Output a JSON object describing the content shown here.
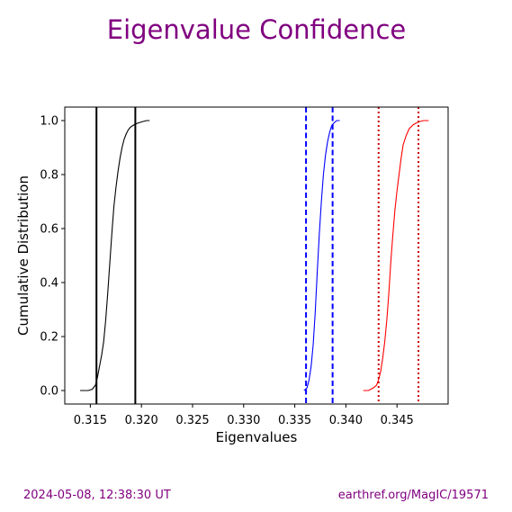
{
  "figure": {
    "title": "Eigenvalue Confidence",
    "title_color": "#800080",
    "footer_left": "2024-05-08, 12:38:30 UT",
    "footer_right": "earthref.org/MagIC/19571",
    "footer_color": "#800080"
  },
  "chart_data": {
    "type": "line",
    "title": "Eigenvalue Confidence",
    "xlabel": "Eigenvalues",
    "ylabel": "Cumulative Distribution",
    "xlim": [
      0.3125,
      0.35
    ],
    "ylim": [
      -0.05,
      1.05
    ],
    "xticks": [
      0.315,
      0.32,
      0.325,
      0.33,
      0.335,
      0.34,
      0.345
    ],
    "xtick_labels": [
      "0.315",
      "0.320",
      "0.325",
      "0.330",
      "0.335",
      "0.340",
      "0.345"
    ],
    "yticks": [
      0.0,
      0.2,
      0.4,
      0.6,
      0.8,
      1.0
    ],
    "ytick_labels": [
      "0.0",
      "0.2",
      "0.4",
      "0.6",
      "0.8",
      "1.0"
    ],
    "grid": false,
    "legend": "none",
    "series": [
      {
        "color": "#000000",
        "x": [
          0.314,
          0.3148,
          0.3152,
          0.3155,
          0.3157,
          0.3159,
          0.3161,
          0.3163,
          0.3165,
          0.3167,
          0.3169,
          0.3171,
          0.3173,
          0.3175,
          0.3177,
          0.3179,
          0.3181,
          0.3183,
          0.3185,
          0.3187,
          0.3189,
          0.3191,
          0.3193,
          0.3196,
          0.32,
          0.3205,
          0.3208
        ],
        "y": [
          0.0,
          0.0,
          0.005,
          0.02,
          0.05,
          0.09,
          0.13,
          0.18,
          0.26,
          0.36,
          0.47,
          0.58,
          0.68,
          0.75,
          0.81,
          0.86,
          0.9,
          0.93,
          0.95,
          0.965,
          0.975,
          0.98,
          0.985,
          0.99,
          0.995,
          1.0,
          1.0
        ]
      },
      {
        "color": "#0000ff",
        "x": [
          0.3359,
          0.3362,
          0.3364,
          0.3366,
          0.3368,
          0.337,
          0.3372,
          0.3374,
          0.3376,
          0.3378,
          0.338,
          0.3382,
          0.3384,
          0.3386,
          0.3388,
          0.3391,
          0.3394
        ],
        "y": [
          0.0,
          0.01,
          0.04,
          0.09,
          0.17,
          0.29,
          0.44,
          0.58,
          0.7,
          0.8,
          0.87,
          0.92,
          0.955,
          0.98,
          0.99,
          1.0,
          1.0
        ]
      },
      {
        "color": "#ff0000",
        "x": [
          0.3417,
          0.3422,
          0.3427,
          0.343,
          0.3432,
          0.3434,
          0.3436,
          0.3438,
          0.344,
          0.3442,
          0.3444,
          0.3446,
          0.3448,
          0.345,
          0.3452,
          0.3454,
          0.3456,
          0.3459,
          0.3462,
          0.3466,
          0.3471,
          0.3476,
          0.3481
        ],
        "y": [
          0.0,
          0.0,
          0.01,
          0.02,
          0.04,
          0.07,
          0.12,
          0.18,
          0.26,
          0.36,
          0.48,
          0.58,
          0.67,
          0.74,
          0.8,
          0.86,
          0.91,
          0.945,
          0.97,
          0.985,
          0.995,
          1.0,
          1.0
        ]
      }
    ],
    "bounds": [
      {
        "color": "#000000",
        "style": "solid",
        "x": 0.3156
      },
      {
        "color": "#000000",
        "style": "solid",
        "x": 0.3194
      },
      {
        "color": "#0000ff",
        "style": "dashed",
        "x": 0.3361
      },
      {
        "color": "#0000ff",
        "style": "dashed",
        "x": 0.3387
      },
      {
        "color": "#cc0000",
        "style": "dotted",
        "x": 0.3432
      },
      {
        "color": "#cc0000",
        "style": "dotted",
        "x": 0.3471
      }
    ]
  }
}
